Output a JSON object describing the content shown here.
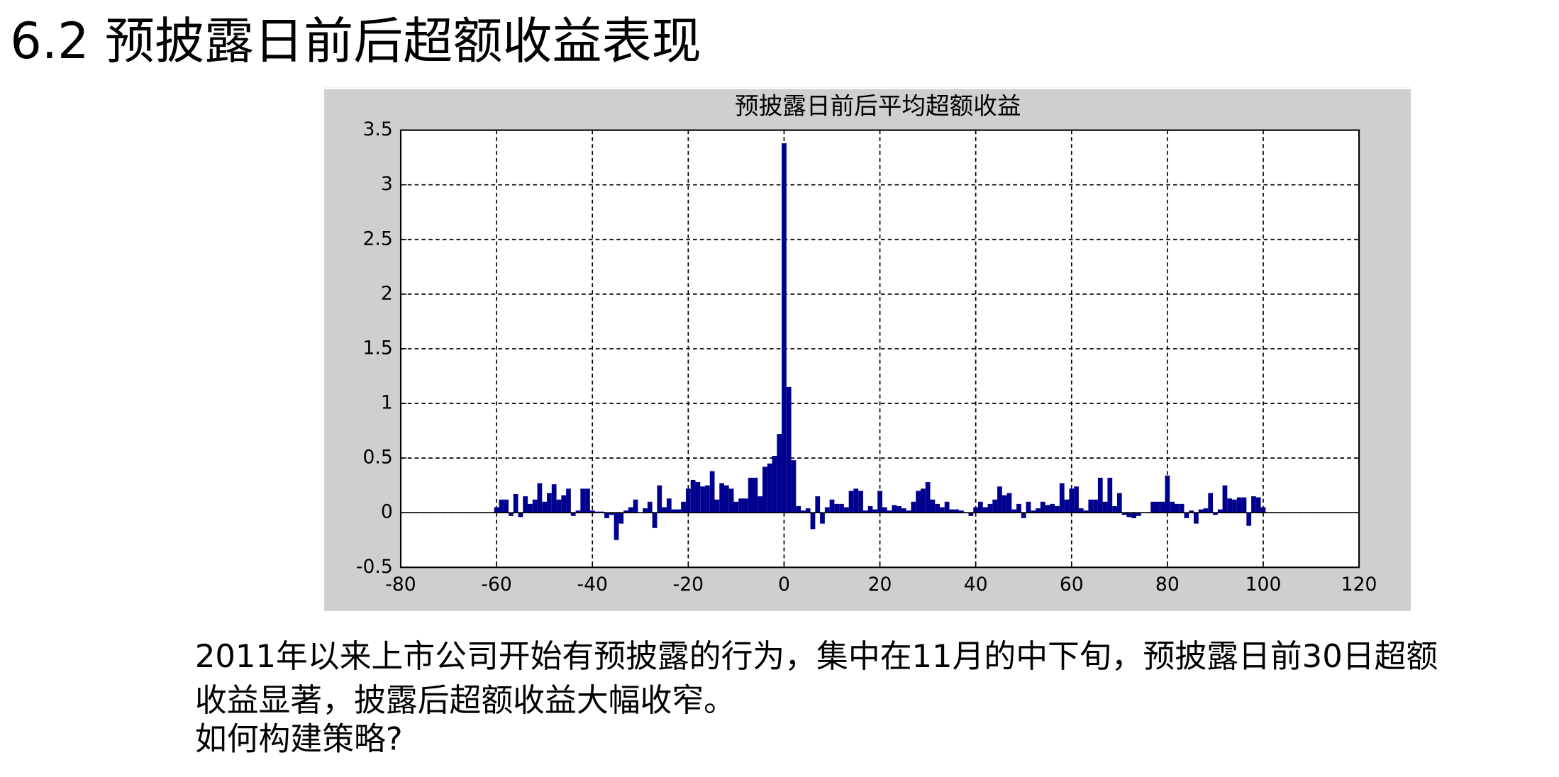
{
  "slide_title": "6.2 预披露日前后超额收益表现",
  "body": [
    "2011年以来上市公司开始有预披露的行为，集中在11月的中下旬，预披露日前30日超额",
    "收益显著，披露后超额收益大幅收窄。",
    "如何构建策略?"
  ],
  "chart_data": {
    "type": "bar",
    "title": "预披露日前后平均超额收益",
    "color": "#00008f",
    "grid": true,
    "x": [
      -60,
      -59,
      -58,
      -57,
      -56,
      -55,
      -54,
      -53,
      -52,
      -51,
      -50,
      -49,
      -48,
      -47,
      -46,
      -45,
      -44,
      -43,
      -42,
      -41,
      -40,
      -39,
      -38,
      -37,
      -36,
      -35,
      -34,
      -33,
      -32,
      -31,
      -30,
      -29,
      -28,
      -27,
      -26,
      -25,
      -24,
      -23,
      -22,
      -21,
      -20,
      -19,
      -18,
      -17,
      -16,
      -15,
      -14,
      -13,
      -12,
      -11,
      -10,
      -9,
      -8,
      -7,
      -6,
      -5,
      -4,
      -3,
      -2,
      -1,
      0,
      1,
      2,
      3,
      4,
      5,
      6,
      7,
      8,
      9,
      10,
      11,
      12,
      13,
      14,
      15,
      16,
      17,
      18,
      19,
      20,
      21,
      22,
      23,
      24,
      25,
      26,
      27,
      28,
      29,
      30,
      31,
      32,
      33,
      34,
      35,
      36,
      37,
      38,
      39,
      40,
      41,
      42,
      43,
      44,
      45,
      46,
      47,
      48,
      49,
      50,
      51,
      52,
      53,
      54,
      55,
      56,
      57,
      58,
      59,
      60,
      61,
      62,
      63,
      64,
      65,
      66,
      67,
      68,
      69,
      70,
      71,
      72,
      73,
      74,
      75,
      76,
      77,
      78,
      79,
      80,
      81,
      82,
      83,
      84,
      85,
      86,
      87,
      88,
      89,
      90,
      91,
      92,
      93,
      94,
      95,
      96,
      97,
      98,
      99,
      100
    ],
    "values": [
      0.05,
      0.12,
      0.12,
      -0.03,
      0.17,
      -0.04,
      0.15,
      0.08,
      0.12,
      0.27,
      0.1,
      0.18,
      0.26,
      0.12,
      0.16,
      0.22,
      -0.03,
      0.02,
      0.22,
      0.22,
      0.02,
      0.01,
      0.01,
      -0.05,
      -0.02,
      -0.25,
      -0.1,
      0.02,
      0.05,
      0.12,
      0.0,
      0.04,
      0.1,
      -0.14,
      0.25,
      0.05,
      0.13,
      0.03,
      0.03,
      0.1,
      0.22,
      0.3,
      0.28,
      0.24,
      0.25,
      0.38,
      0.12,
      0.27,
      0.25,
      0.22,
      0.1,
      0.13,
      0.13,
      0.32,
      0.32,
      0.15,
      0.42,
      0.45,
      0.52,
      0.72,
      3.38,
      1.15,
      0.48,
      0.06,
      0.02,
      0.04,
      -0.15,
      0.15,
      -0.1,
      0.05,
      0.12,
      0.08,
      0.08,
      0.05,
      0.2,
      0.22,
      0.2,
      0.02,
      0.06,
      0.03,
      0.2,
      0.05,
      0.02,
      0.07,
      0.06,
      0.04,
      0.02,
      0.1,
      0.2,
      0.22,
      0.28,
      0.12,
      0.08,
      0.05,
      0.1,
      0.03,
      0.03,
      0.02,
      0.0,
      -0.03,
      0.05,
      0.1,
      0.05,
      0.08,
      0.12,
      0.24,
      0.16,
      0.18,
      0.03,
      0.08,
      -0.05,
      0.1,
      0.02,
      0.04,
      0.1,
      0.07,
      0.08,
      0.06,
      0.27,
      0.12,
      0.22,
      0.24,
      0.04,
      0.02,
      0.12,
      0.12,
      0.32,
      0.1,
      0.32,
      0.06,
      0.18,
      -0.02,
      -0.04,
      -0.05,
      -0.03,
      0.0,
      0.0,
      0.1,
      0.1,
      0.1,
      0.34,
      0.1,
      0.08,
      0.08,
      -0.05,
      0.02,
      -0.1,
      0.03,
      0.04,
      0.18,
      -0.02,
      0.03,
      0.25,
      0.13,
      0.12,
      0.14,
      0.14,
      -0.12,
      0.15,
      0.14,
      0.05
    ],
    "xlim": [
      -80,
      120
    ],
    "xticks": [
      -80,
      -60,
      -40,
      -20,
      0,
      20,
      40,
      60,
      80,
      100,
      120
    ],
    "ylim": [
      -0.5,
      3.5
    ],
    "yticks": [
      -0.5,
      0,
      0.5,
      1,
      1.5,
      2,
      2.5,
      3,
      3.5
    ]
  }
}
